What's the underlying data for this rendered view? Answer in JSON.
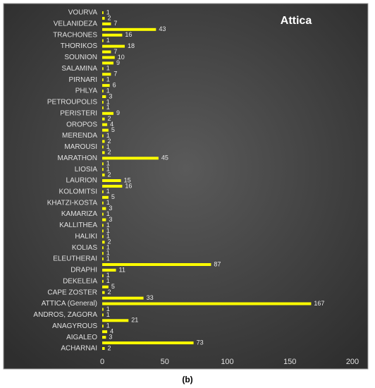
{
  "chart_data": {
    "type": "barh",
    "title": "Attica",
    "caption": "(b)",
    "categories": [
      "VOURVA",
      null,
      "VELANIDEZA",
      null,
      "TRACHONES",
      null,
      "THORIKOS",
      null,
      "SOUNION",
      null,
      "SALAMINA",
      null,
      "PIRNARI",
      null,
      "PHLYA",
      null,
      "PETROUPOLIS",
      null,
      "PERISTERI",
      null,
      "OROPOS",
      null,
      "MERENDA",
      null,
      "MAROUSI",
      null,
      "MARATHON",
      null,
      "LIOSIA",
      null,
      "LAURION",
      null,
      "KOLOMITSI",
      null,
      "KHATZI-KOSTA",
      null,
      "KAMARIZA",
      null,
      "KALLITHEA",
      null,
      "HALIKI",
      null,
      "KOLIAS",
      null,
      "ELEUTHERAI",
      null,
      "DRAPHI",
      null,
      "DEKELEIA",
      null,
      "CAPE ZOSTER",
      null,
      "ATTICA (General)",
      null,
      "ANDROS, ZAGORA",
      null,
      "ANAGYROUS",
      null,
      "AIGALEO",
      null,
      "ACHARNAI"
    ],
    "values": [
      1,
      2,
      7,
      43,
      16,
      1,
      18,
      7,
      10,
      9,
      1,
      7,
      1,
      6,
      1,
      3,
      1,
      1,
      9,
      2,
      4,
      5,
      1,
      2,
      1,
      2,
      45,
      1,
      1,
      2,
      15,
      16,
      1,
      5,
      1,
      3,
      1,
      3,
      1,
      1,
      1,
      2,
      1,
      1,
      1,
      87,
      11,
      1,
      1,
      5,
      2,
      33,
      167,
      1,
      1,
      21,
      1,
      4,
      3,
      73,
      2
    ],
    "color": "#ffff00",
    "xlim": [
      0,
      200
    ],
    "xticks": [
      0,
      50,
      100,
      150,
      200
    ],
    "grid": false
  }
}
